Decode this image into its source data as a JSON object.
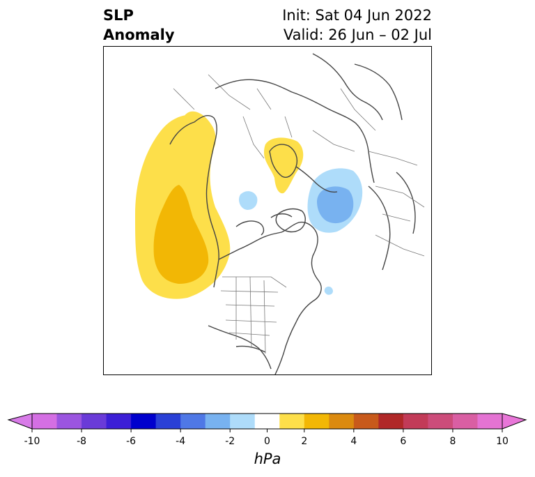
{
  "header": {
    "title_line1": "SLP",
    "title_line2": "Anomaly",
    "init_text": "Init: Sat 04 Jun 2022",
    "valid_text": "Valid: 26 Jun – 02 Jul"
  },
  "map": {
    "projection": "north-polar-stereographic",
    "anomaly_regions": [
      {
        "name": "north-pacific-ridge",
        "level": "1-2 hPa",
        "color": "#FDDF4A"
      },
      {
        "name": "north-pacific-core",
        "level": "2-3 hPa",
        "color": "#F2B705"
      },
      {
        "name": "alaska-ridge",
        "level": "1-2 hPa",
        "color": "#FDDF4A"
      },
      {
        "name": "scandinavia-high",
        "level": "1-2 hPa",
        "color": "#FDDF4A"
      },
      {
        "name": "barents-low",
        "level": "-2 to -1 hPa",
        "color": "#AEDCFA"
      },
      {
        "name": "barents-low-core",
        "level": "-3 to -2 hPa",
        "color": "#78B2F0"
      },
      {
        "name": "arctic-low",
        "level": "-2 to -1 hPa",
        "color": "#AEDCFA"
      },
      {
        "name": "atlantic-low",
        "level": "-2 to -1 hPa",
        "color": "#AEDCFA"
      }
    ]
  },
  "colorbar": {
    "unit": "hPa",
    "extend": "both",
    "boundaries": [
      -10,
      -9,
      -8,
      -7,
      -6,
      -5,
      -4,
      -3,
      -2,
      -1,
      1,
      2,
      3,
      4,
      5,
      6,
      7,
      8,
      9,
      10
    ],
    "colors": [
      "#D46FE3",
      "#9B55E0",
      "#6A3BD8",
      "#3C1FD6",
      "#0000CD",
      "#2A40D6",
      "#4F78E6",
      "#78B2F0",
      "#AEDCFA",
      "#FFFFFF",
      "#FDDF4A",
      "#F2B705",
      "#DB8A0F",
      "#C85A1B",
      "#B02828",
      "#C23B58",
      "#CC4C7A",
      "#D95FA3",
      "#E473D3"
    ],
    "under_color": "#D87BE8",
    "over_color": "#E876D8",
    "ticks": [
      "-10",
      "-8",
      "-6",
      "-4",
      "-2",
      "0",
      "2",
      "4",
      "6",
      "8",
      "10"
    ]
  }
}
